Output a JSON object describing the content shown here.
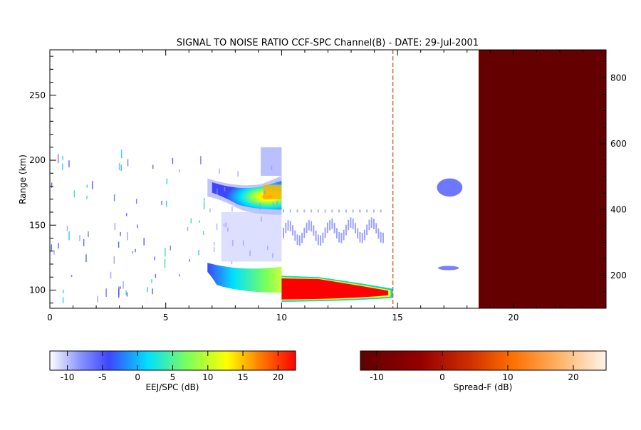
{
  "chart_data": {
    "type": "heatmap",
    "title": "SIGNAL TO NOISE RATIO CCF-SPC Channel(B) - DATE: 29-Jul-2001",
    "xlabel": "",
    "ylabel": "Range (km)",
    "xlim": [
      0,
      24
    ],
    "ylim": [
      86,
      285
    ],
    "y2lim": [
      100,
      885
    ],
    "x_ticks": [
      "0",
      "5",
      "10",
      "15",
      "20"
    ],
    "x_tick_values": [
      0,
      5,
      10,
      15,
      20
    ],
    "y_ticks": [
      "100",
      "150",
      "200",
      "250"
    ],
    "y_tick_values": [
      100,
      150,
      200,
      250
    ],
    "y2_ticks": [
      "200",
      "400",
      "600",
      "800"
    ],
    "y2_tick_values": [
      200,
      400,
      600,
      800
    ],
    "regions": [
      {
        "name": "EEJ/SPC",
        "x": [
          0,
          10
        ],
        "note": "plotted with EEJ/SPC colour scale"
      },
      {
        "name": "Spread-F",
        "x": [
          10,
          24
        ],
        "note": "plotted with Spread-F colour scale"
      }
    ],
    "features": [
      {
        "x": [
          6.8,
          10.0
        ],
        "y": [
          158,
          192
        ],
        "peak_db": 16,
        "scale": "EEJ/SPC"
      },
      {
        "x": [
          6.8,
          10.0
        ],
        "y": [
          100,
          122
        ],
        "peak_db": 8,
        "scale": "EEJ/SPC"
      },
      {
        "x": [
          10.0,
          14.8
        ],
        "y": [
          91,
          111
        ],
        "peak_db": 22,
        "scale": "EEJ/SPC"
      },
      {
        "x": [
          16.7,
          17.8
        ],
        "y": [
          172,
          186
        ],
        "peak_db": -8,
        "scale": "EEJ/SPC"
      },
      {
        "x": [
          16.7,
          17.6
        ],
        "y": [
          115,
          119
        ],
        "peak_db": -8,
        "scale": "EEJ/SPC"
      },
      {
        "x": [
          18.5,
          24.0
        ],
        "y": [
          86,
          285
        ],
        "value_db": -12,
        "scale": "Spread-F"
      }
    ],
    "colorbars": [
      {
        "label": "EEJ/SPC (dB)",
        "range": [
          -12.5,
          22.5
        ],
        "ticks": [
          "-10",
          "-5",
          "0",
          "5",
          "10",
          "15",
          "20"
        ],
        "tick_values": [
          -10,
          -5,
          0,
          5,
          10,
          15,
          20
        ],
        "colors": [
          "#ffffff",
          "#3c46ff",
          "#00ffff",
          "#7dff5a",
          "#ffff00",
          "#ff0000"
        ]
      },
      {
        "label": "Spread-F (dB)",
        "range": [
          -12.5,
          25
        ],
        "ticks": [
          "-10",
          "0",
          "10",
          "20"
        ],
        "tick_values": [
          -10,
          0,
          10,
          20
        ],
        "colors": [
          "#600000",
          "#a00000",
          "#e04000",
          "#ff8c1a",
          "#ffc080",
          "#fff4e8"
        ]
      }
    ]
  }
}
